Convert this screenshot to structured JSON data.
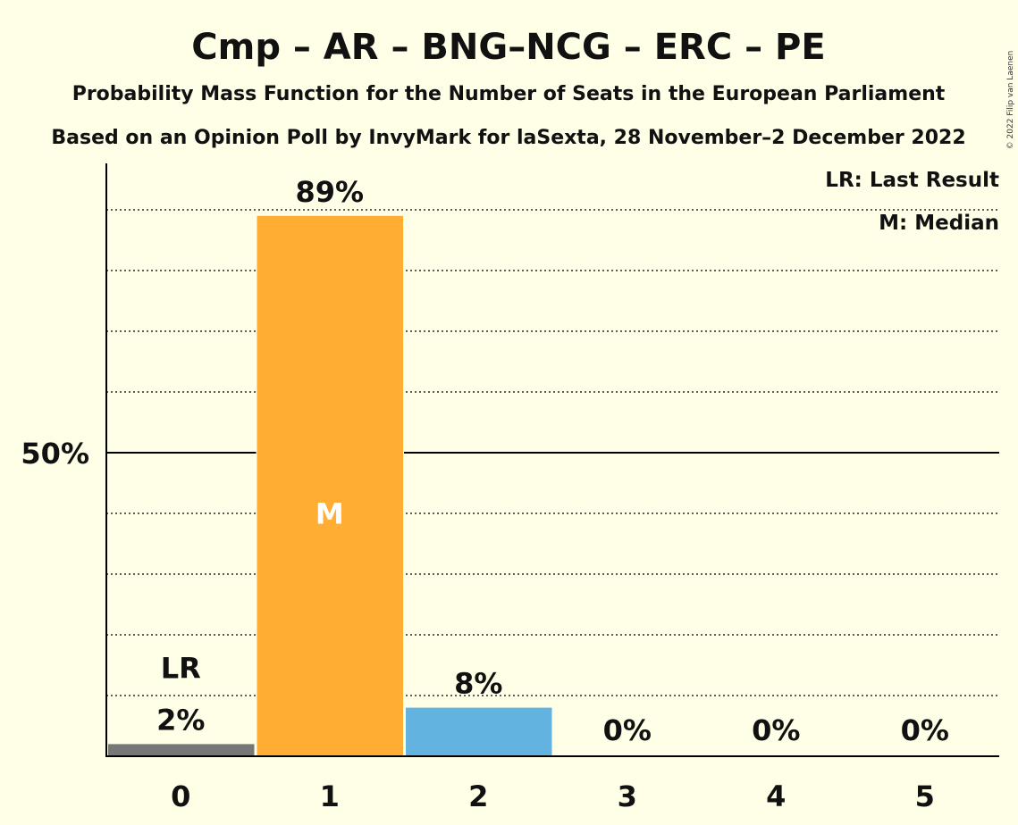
{
  "chart_data": {
    "type": "bar",
    "title": "Cmp – AR – BNG–NCG – ERC – PE",
    "subtitle": "Probability Mass Function for the Number of Seats in the European Parliament",
    "subtitle2": "Based on an Opinion Poll by InvyMark for laSexta, 28 November–2 December 2022",
    "copyright": "© 2022 Filip van Laenen",
    "legend": [
      "LR: Last Result",
      "M: Median"
    ],
    "legend_position": "top-right",
    "categories": [
      "0",
      "1",
      "2",
      "3",
      "4",
      "5"
    ],
    "values": [
      2,
      89,
      8,
      0,
      0,
      0
    ],
    "value_labels": [
      "2%",
      "89%",
      "8%",
      "0%",
      "0%",
      "0%"
    ],
    "bar_colors": [
      "#777777",
      "#FFAE33",
      "#63B3E0",
      "#777777",
      "#777777",
      "#777777"
    ],
    "last_result_category": "0",
    "last_result_label": "LR",
    "median_category": "1",
    "median_label": "M",
    "y_tick_label": "50%",
    "y_tick_value": 50,
    "ylim": [
      0,
      100
    ],
    "grid": "dotted every 10%"
  }
}
